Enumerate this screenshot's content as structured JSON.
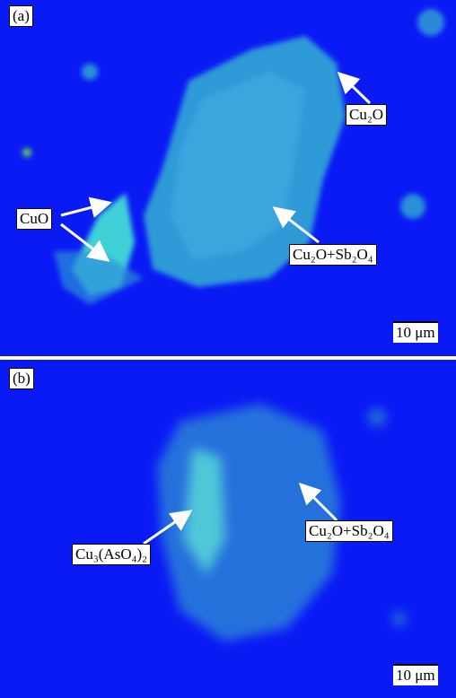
{
  "panels": [
    {
      "label": "(a)",
      "annotations": [
        "Cu₂O",
        "CuO",
        "Cu₂O+Sb₂O₄"
      ],
      "scale_bar": "10 μm"
    },
    {
      "label": "(b)",
      "annotations": [
        "Cu₂O+Sb₂O₄",
        "Cu₃(AsO₄)₂"
      ],
      "scale_bar": "10 μm"
    }
  ]
}
